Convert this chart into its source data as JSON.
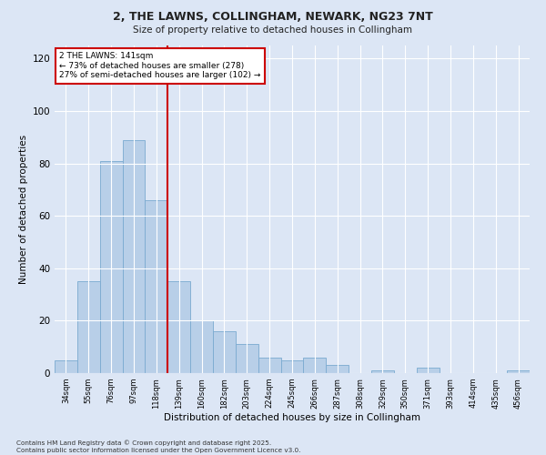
{
  "title_line1": "2, THE LAWNS, COLLINGHAM, NEWARK, NG23 7NT",
  "title_line2": "Size of property relative to detached houses in Collingham",
  "xlabel": "Distribution of detached houses by size in Collingham",
  "ylabel": "Number of detached properties",
  "categories": [
    "34sqm",
    "55sqm",
    "76sqm",
    "97sqm",
    "118sqm",
    "139sqm",
    "160sqm",
    "182sqm",
    "203sqm",
    "224sqm",
    "245sqm",
    "266sqm",
    "287sqm",
    "308sqm",
    "329sqm",
    "350sqm",
    "371sqm",
    "393sqm",
    "414sqm",
    "435sqm",
    "456sqm"
  ],
  "values": [
    5,
    35,
    81,
    89,
    66,
    35,
    20,
    16,
    11,
    6,
    5,
    6,
    3,
    0,
    1,
    0,
    2,
    0,
    0,
    0,
    1
  ],
  "bar_color": "#b8cfe8",
  "bar_edge_color": "#7aaad0",
  "marker_bin_index": 5,
  "marker_label": "2 THE LAWNS: 141sqm",
  "annotation_line2": "← 73% of detached houses are smaller (278)",
  "annotation_line3": "27% of semi-detached houses are larger (102) →",
  "annotation_box_color": "#ffffff",
  "annotation_box_edge": "#cc0000",
  "marker_line_color": "#cc0000",
  "ylim": [
    0,
    125
  ],
  "yticks": [
    0,
    20,
    40,
    60,
    80,
    100,
    120
  ],
  "footnote_line1": "Contains HM Land Registry data © Crown copyright and database right 2025.",
  "footnote_line2": "Contains public sector information licensed under the Open Government Licence v3.0.",
  "bg_color": "#dce6f5",
  "plot_bg_color": "#dce6f5"
}
